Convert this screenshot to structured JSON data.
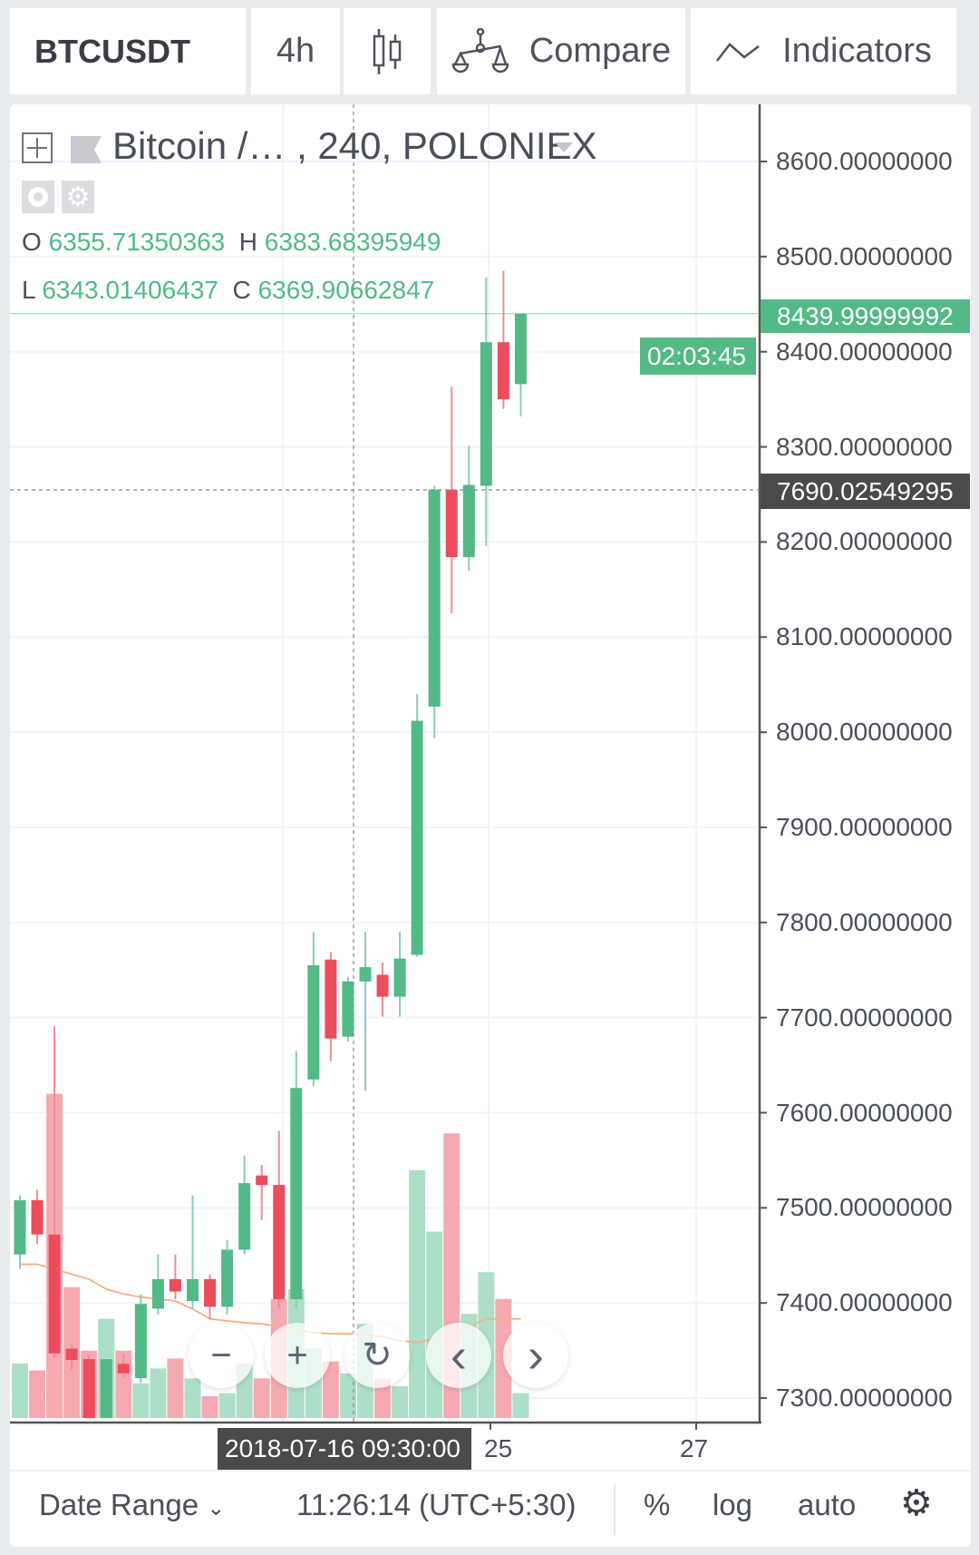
{
  "toolbar": {
    "symbol": "BTCUSDT",
    "interval": "4h",
    "chart_type_icon": "candlestick-icon",
    "compare_label": "Compare",
    "compare_icon": "scales-icon",
    "indicators_label": "Indicators",
    "indicators_icon": "trend-line-icon"
  },
  "legend": {
    "title": "Bitcoin /… , 240, POLONIEX",
    "o_label": "O",
    "o_value": "6355.71350363",
    "h_label": "H",
    "h_value": "6383.68395949",
    "l_label": "L",
    "l_value": "6343.01406437",
    "c_label": "C",
    "c_value": "6369.90662847"
  },
  "price_axis": {
    "labels": [
      "8600.00000000",
      "8500.00000000",
      "8400.00000000",
      "8300.00000000",
      "8200.00000000",
      "8100.00000000",
      "8000.00000000",
      "7900.00000000",
      "7800.00000000",
      "7700.00000000",
      "7600.00000000",
      "7500.00000000",
      "7400.00000000",
      "7300.00000000"
    ],
    "current_price": "8439.99999992",
    "countdown": "02:03:45",
    "crosshair_price": "7690.02549295"
  },
  "time_axis": {
    "labels": [
      "25",
      "27"
    ],
    "crosshair_time": "2018-07-16 09:30:00"
  },
  "colors": {
    "up": "#53b987",
    "down": "#eb4d5c",
    "up_volume": "#a9dcc4",
    "down_volume": "#f4a5ad",
    "volume_ma": "#f4b183"
  },
  "chart_data": {
    "type": "candlestick",
    "ylim": [
      7270,
      8650
    ],
    "columns": [
      "open",
      "high",
      "low",
      "close",
      "volume",
      "volume_ma"
    ],
    "candles": [
      [
        7451,
        7513,
        7436,
        7508,
        55,
        155
      ],
      [
        7508,
        7519,
        7462,
        7472,
        48,
        155
      ],
      [
        7472,
        7691,
        7342,
        7347,
        327,
        150
      ],
      [
        7352,
        7357,
        7330,
        7340,
        132,
        145
      ],
      [
        7341,
        7346,
        7279,
        7279,
        68,
        140
      ],
      [
        7279,
        7341,
        7279,
        7341,
        100,
        130
      ],
      [
        7336,
        7347,
        7321,
        7326,
        68,
        125
      ],
      [
        7321,
        7409,
        7316,
        7399,
        35,
        122
      ],
      [
        7394,
        7451,
        7388,
        7425,
        50,
        120
      ],
      [
        7425,
        7451,
        7404,
        7412,
        60,
        118
      ],
      [
        7402,
        7513,
        7394,
        7425,
        40,
        110
      ],
      [
        7425,
        7430,
        7383,
        7396,
        22,
        100
      ],
      [
        7396,
        7466,
        7388,
        7456,
        25,
        98
      ],
      [
        7456,
        7555,
        7451,
        7526,
        55,
        96
      ],
      [
        7534,
        7545,
        7487,
        7524,
        40,
        95
      ],
      [
        7524,
        7581,
        7394,
        7404,
        120,
        92
      ],
      [
        7404,
        7665,
        7394,
        7626,
        130,
        90
      ],
      [
        7635,
        7790,
        7628,
        7755,
        70,
        86
      ],
      [
        7761,
        7769,
        7654,
        7678,
        57,
        85
      ],
      [
        7680,
        7743,
        7675,
        7738,
        45,
        85
      ],
      [
        7738,
        7790,
        7623,
        7753,
        95,
        84
      ],
      [
        7745,
        7758,
        7701,
        7722,
        40,
        82
      ],
      [
        7722,
        7790,
        7701,
        7762,
        32,
        78
      ],
      [
        7766,
        8040,
        7764,
        8012,
        250,
        76
      ],
      [
        8027,
        8259,
        7994,
        8255,
        188,
        80
      ],
      [
        8255,
        8363,
        8125,
        8184,
        287,
        85
      ],
      [
        8184,
        8301,
        8170,
        8260,
        105,
        92
      ],
      [
        8259,
        8478,
        8196,
        8410,
        147,
        100
      ],
      [
        8410,
        8485,
        8340,
        8350,
        120,
        100
      ],
      [
        8366,
        8440,
        8332,
        8440,
        25,
        100
      ]
    ]
  },
  "zoom_controls": {
    "zoom_out": "−",
    "zoom_in": "+",
    "reset": "↻",
    "prev": "‹",
    "next": "›"
  },
  "footer": {
    "date_range": "Date Range",
    "time": "11:26:14 (UTC+5:30)",
    "percent": "%",
    "log": "log",
    "auto": "auto"
  }
}
